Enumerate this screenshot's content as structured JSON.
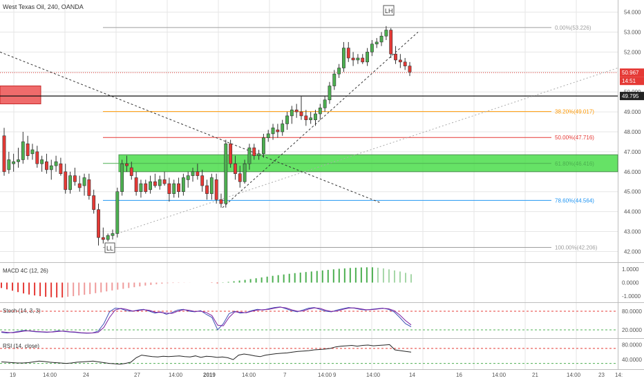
{
  "header": {
    "title": "West Texas Oil, 240, OANDA"
  },
  "colors": {
    "up": "#4caf50",
    "down": "#e53935",
    "wick": "#333333",
    "grid": "#e6e6e6",
    "axis_text": "#555555"
  },
  "chart_data": [
    {
      "type": "candlestick",
      "title": "West Texas Oil, 240, OANDA",
      "ylim": [
        41.6,
        54.4
      ],
      "ticks": [
        "42.000",
        "43.000",
        "44.000",
        "45.000",
        "46.000",
        "47.000",
        "48.000",
        "49.000",
        "50.000",
        "51.000",
        "52.000",
        "53.000",
        "54.000"
      ],
      "price_tags": [
        {
          "label": "50.967",
          "value": 50.967,
          "color": "#e53935"
        },
        {
          "label": "14:51",
          "value": 50.6,
          "color": "#e53935"
        },
        {
          "label": "49.795",
          "value": 49.795,
          "color": "#222222"
        }
      ],
      "fib_levels": [
        {
          "label": "0.00%(53.226)",
          "value": 53.226,
          "color": "#9e9e9e"
        },
        {
          "label": "38.20%(49.017)",
          "value": 49.017,
          "color": "#ff9800"
        },
        {
          "label": "50.00%(47.716)",
          "value": 47.716,
          "color": "#e53935"
        },
        {
          "label": "61.80%(46.416)",
          "value": 46.416,
          "color": "#4caf50"
        },
        {
          "label": "78.60%(44.564)",
          "value": 44.564,
          "color": "#2196f3"
        },
        {
          "label": "100.00%(42.206)",
          "value": 42.206,
          "color": "#9e9e9e"
        }
      ],
      "annotations": [
        "LH",
        "LL"
      ],
      "candles": [
        {
          "o": 47.8,
          "h": 48.2,
          "l": 45.8,
          "c": 46.0
        },
        {
          "o": 46.1,
          "h": 47.0,
          "l": 45.9,
          "c": 46.6
        },
        {
          "o": 46.4,
          "h": 46.9,
          "l": 46.0,
          "c": 46.5
        },
        {
          "o": 46.5,
          "h": 47.2,
          "l": 46.2,
          "c": 46.6
        },
        {
          "o": 46.6,
          "h": 48.0,
          "l": 46.4,
          "c": 47.5
        },
        {
          "o": 47.4,
          "h": 47.8,
          "l": 46.6,
          "c": 46.8
        },
        {
          "o": 46.9,
          "h": 47.4,
          "l": 46.6,
          "c": 47.1
        },
        {
          "o": 47.0,
          "h": 47.3,
          "l": 46.2,
          "c": 46.4
        },
        {
          "o": 46.4,
          "h": 46.8,
          "l": 46.0,
          "c": 46.6
        },
        {
          "o": 46.5,
          "h": 46.9,
          "l": 45.9,
          "c": 46.1
        },
        {
          "o": 46.1,
          "h": 46.6,
          "l": 45.6,
          "c": 46.3
        },
        {
          "o": 46.3,
          "h": 46.8,
          "l": 46.0,
          "c": 46.5
        },
        {
          "o": 46.4,
          "h": 46.7,
          "l": 45.8,
          "c": 45.9
        },
        {
          "o": 46.0,
          "h": 46.4,
          "l": 44.9,
          "c": 45.1
        },
        {
          "o": 45.1,
          "h": 46.0,
          "l": 44.9,
          "c": 45.8
        },
        {
          "o": 45.8,
          "h": 46.2,
          "l": 45.3,
          "c": 45.5
        },
        {
          "o": 45.4,
          "h": 45.8,
          "l": 45.0,
          "c": 45.2
        },
        {
          "o": 45.3,
          "h": 45.9,
          "l": 44.8,
          "c": 45.7
        },
        {
          "o": 45.6,
          "h": 45.9,
          "l": 44.6,
          "c": 44.8
        },
        {
          "o": 44.8,
          "h": 45.1,
          "l": 43.9,
          "c": 44.1
        },
        {
          "o": 44.1,
          "h": 44.4,
          "l": 42.3,
          "c": 42.7
        },
        {
          "o": 42.7,
          "h": 43.2,
          "l": 42.4,
          "c": 42.6
        },
        {
          "o": 42.6,
          "h": 42.9,
          "l": 42.5,
          "c": 42.8
        },
        {
          "o": 42.8,
          "h": 43.1,
          "l": 42.6,
          "c": 42.9
        },
        {
          "o": 42.9,
          "h": 45.2,
          "l": 42.7,
          "c": 45.0
        },
        {
          "o": 45.0,
          "h": 46.6,
          "l": 44.8,
          "c": 46.4
        },
        {
          "o": 46.4,
          "h": 46.8,
          "l": 46.0,
          "c": 46.3
        },
        {
          "o": 46.2,
          "h": 46.5,
          "l": 45.6,
          "c": 45.8
        },
        {
          "o": 45.7,
          "h": 46.0,
          "l": 44.8,
          "c": 45.0
        },
        {
          "o": 45.0,
          "h": 45.6,
          "l": 44.7,
          "c": 45.4
        },
        {
          "o": 45.4,
          "h": 45.6,
          "l": 44.9,
          "c": 45.0
        },
        {
          "o": 45.1,
          "h": 45.8,
          "l": 44.9,
          "c": 45.5
        },
        {
          "o": 45.5,
          "h": 45.9,
          "l": 45.2,
          "c": 45.3
        },
        {
          "o": 45.3,
          "h": 45.8,
          "l": 45.1,
          "c": 45.6
        },
        {
          "o": 45.6,
          "h": 46.0,
          "l": 45.3,
          "c": 45.4
        },
        {
          "o": 45.4,
          "h": 45.7,
          "l": 44.5,
          "c": 44.9
        },
        {
          "o": 44.9,
          "h": 45.6,
          "l": 44.7,
          "c": 45.4
        },
        {
          "o": 45.4,
          "h": 45.7,
          "l": 44.7,
          "c": 45.0
        },
        {
          "o": 45.0,
          "h": 45.9,
          "l": 44.8,
          "c": 45.7
        },
        {
          "o": 45.6,
          "h": 46.0,
          "l": 45.2,
          "c": 45.8
        },
        {
          "o": 45.8,
          "h": 46.2,
          "l": 45.5,
          "c": 46.0
        },
        {
          "o": 46.0,
          "h": 46.4,
          "l": 45.6,
          "c": 45.8
        },
        {
          "o": 45.8,
          "h": 46.1,
          "l": 45.0,
          "c": 45.3
        },
        {
          "o": 45.3,
          "h": 45.6,
          "l": 44.6,
          "c": 44.9
        },
        {
          "o": 44.9,
          "h": 45.9,
          "l": 44.6,
          "c": 45.7
        },
        {
          "o": 45.6,
          "h": 45.9,
          "l": 44.4,
          "c": 44.6
        },
        {
          "o": 44.6,
          "h": 44.9,
          "l": 44.2,
          "c": 44.4
        },
        {
          "o": 44.4,
          "h": 47.6,
          "l": 44.2,
          "c": 47.4
        },
        {
          "o": 47.4,
          "h": 47.6,
          "l": 46.2,
          "c": 46.4
        },
        {
          "o": 46.4,
          "h": 46.8,
          "l": 45.6,
          "c": 45.9
        },
        {
          "o": 45.9,
          "h": 46.3,
          "l": 45.2,
          "c": 45.5
        },
        {
          "o": 45.5,
          "h": 46.6,
          "l": 45.4,
          "c": 46.4
        },
        {
          "o": 46.4,
          "h": 47.4,
          "l": 46.1,
          "c": 47.2
        },
        {
          "o": 47.2,
          "h": 47.4,
          "l": 46.6,
          "c": 46.8
        },
        {
          "o": 46.8,
          "h": 47.1,
          "l": 46.6,
          "c": 46.9
        },
        {
          "o": 46.9,
          "h": 47.9,
          "l": 46.7,
          "c": 47.7
        },
        {
          "o": 47.7,
          "h": 48.1,
          "l": 47.5,
          "c": 47.9
        },
        {
          "o": 47.9,
          "h": 48.4,
          "l": 47.6,
          "c": 48.2
        },
        {
          "o": 48.1,
          "h": 48.4,
          "l": 47.7,
          "c": 48.0
        },
        {
          "o": 48.0,
          "h": 48.6,
          "l": 47.8,
          "c": 48.4
        },
        {
          "o": 48.4,
          "h": 49.0,
          "l": 48.1,
          "c": 48.8
        },
        {
          "o": 48.8,
          "h": 49.3,
          "l": 48.4,
          "c": 49.1
        },
        {
          "o": 49.1,
          "h": 49.4,
          "l": 48.7,
          "c": 49.0
        },
        {
          "o": 49.0,
          "h": 49.8,
          "l": 48.6,
          "c": 48.8
        },
        {
          "o": 48.8,
          "h": 49.1,
          "l": 48.3,
          "c": 48.6
        },
        {
          "o": 48.6,
          "h": 49.0,
          "l": 48.4,
          "c": 48.7
        },
        {
          "o": 48.6,
          "h": 49.1,
          "l": 48.3,
          "c": 48.9
        },
        {
          "o": 48.9,
          "h": 49.4,
          "l": 48.6,
          "c": 49.2
        },
        {
          "o": 49.2,
          "h": 49.8,
          "l": 49.0,
          "c": 49.6
        },
        {
          "o": 49.6,
          "h": 50.5,
          "l": 49.4,
          "c": 50.3
        },
        {
          "o": 50.3,
          "h": 51.1,
          "l": 50.1,
          "c": 50.9
        },
        {
          "o": 50.9,
          "h": 51.4,
          "l": 50.7,
          "c": 51.2
        },
        {
          "o": 51.2,
          "h": 52.5,
          "l": 51.0,
          "c": 52.2
        },
        {
          "o": 52.2,
          "h": 52.5,
          "l": 51.5,
          "c": 51.7
        },
        {
          "o": 51.7,
          "h": 52.0,
          "l": 51.3,
          "c": 51.6
        },
        {
          "o": 51.6,
          "h": 51.9,
          "l": 51.4,
          "c": 51.7
        },
        {
          "o": 51.7,
          "h": 51.9,
          "l": 51.4,
          "c": 51.5
        },
        {
          "o": 51.5,
          "h": 52.2,
          "l": 51.3,
          "c": 52.0
        },
        {
          "o": 52.0,
          "h": 52.6,
          "l": 51.8,
          "c": 52.4
        },
        {
          "o": 52.4,
          "h": 52.7,
          "l": 52.2,
          "c": 52.5
        },
        {
          "o": 52.5,
          "h": 53.0,
          "l": 52.3,
          "c": 52.8
        },
        {
          "o": 52.8,
          "h": 53.3,
          "l": 52.6,
          "c": 53.1
        },
        {
          "o": 53.1,
          "h": 53.2,
          "l": 51.7,
          "c": 51.9
        },
        {
          "o": 51.9,
          "h": 52.3,
          "l": 51.4,
          "c": 51.6
        },
        {
          "o": 51.6,
          "h": 51.9,
          "l": 51.2,
          "c": 51.5
        },
        {
          "o": 51.5,
          "h": 51.7,
          "l": 51.1,
          "c": 51.3
        },
        {
          "o": 51.3,
          "h": 51.5,
          "l": 50.8,
          "c": 51.0
        }
      ],
      "x_labels": [
        "19",
        "14:00",
        "24",
        "27",
        "14:00",
        "2019",
        "14:00",
        "7",
        "14:00",
        "9",
        "14:00",
        "14",
        "16",
        "14:00",
        "21",
        "14:00",
        "23",
        "14:"
      ]
    },
    {
      "type": "histogram",
      "title": "MACD 4C (12, 26)",
      "ticks": [
        "1.0000",
        "0.0000",
        "-1.0000"
      ],
      "ylim": [
        -1.3,
        1.3
      ],
      "values": [
        -0.4,
        -0.5,
        -0.6,
        -0.7,
        -0.8,
        -0.88,
        -0.95,
        -1.0,
        -1.05,
        -1.08,
        -1.1,
        -1.1,
        -1.05,
        -1.0,
        -0.95,
        -0.9,
        -0.85,
        -0.78,
        -0.72,
        -0.65,
        -0.58,
        -0.52,
        -0.46,
        -0.4,
        -0.34,
        -0.28,
        -0.22,
        -0.17,
        -0.12,
        -0.08,
        -0.05,
        -0.03,
        -0.02,
        -0.01,
        -0.005,
        0.0,
        0.0,
        0.0,
        -0.02,
        -0.05,
        0.02,
        0.05,
        0.1,
        0.15,
        0.2,
        0.26,
        0.32,
        0.38,
        0.44,
        0.5,
        0.55,
        0.6,
        0.65,
        0.7,
        0.74,
        0.78,
        0.82,
        0.86,
        0.9,
        0.94,
        0.98,
        1.02,
        1.05,
        1.08,
        1.1,
        1.12,
        1.13,
        1.13,
        1.1,
        1.05,
        0.98,
        0.9,
        0.82,
        0.72,
        0.62
      ],
      "colors": [
        "#e53935",
        "#ef9a9a",
        "#4caf50",
        "#a5d6a7"
      ]
    },
    {
      "type": "line",
      "title": "Stoch (14, 3, 3)",
      "ticks": [
        "80.0000",
        "20.0000"
      ],
      "ylim": [
        0,
        100
      ],
      "levels": [
        80,
        20
      ],
      "series": [
        {
          "color": "#3f51b5",
          "values": [
            12,
            10,
            12,
            15,
            18,
            16,
            14,
            13,
            12,
            14,
            17,
            15,
            13,
            12,
            10,
            9,
            10,
            16,
            40,
            78,
            90,
            88,
            82,
            80,
            84,
            86,
            80,
            74,
            78,
            70,
            76,
            84,
            86,
            80,
            78,
            82,
            70,
            60,
            20,
            40,
            72,
            80,
            74,
            76,
            82,
            86,
            84,
            88,
            92,
            94,
            88,
            82,
            78,
            84,
            90,
            92,
            86,
            80,
            78,
            84,
            88,
            92,
            90,
            86,
            84,
            86,
            88,
            90,
            86,
            78,
            60,
            40,
            30
          ]
        },
        {
          "color": "#7b1fa2",
          "values": [
            14,
            12,
            11,
            13,
            16,
            17,
            15,
            14,
            13,
            13,
            15,
            16,
            14,
            13,
            11,
            10,
            10,
            12,
            28,
            60,
            84,
            89,
            86,
            81,
            82,
            85,
            83,
            77,
            76,
            74,
            73,
            80,
            85,
            83,
            79,
            80,
            76,
            66,
            35,
            33,
            60,
            78,
            77,
            75,
            80,
            84,
            85,
            86,
            90,
            93,
            91,
            85,
            80,
            81,
            87,
            91,
            89,
            83,
            79,
            81,
            86,
            90,
            91,
            88,
            85,
            85,
            87,
            89,
            88,
            82,
            68,
            50,
            36
          ]
        }
      ]
    },
    {
      "type": "line",
      "title": "RSI (14, close)",
      "ticks": [
        "80.0000",
        "40.0000"
      ],
      "ylim": [
        20,
        90
      ],
      "levels": [
        70,
        30
      ],
      "series": [
        {
          "color": "#222222",
          "values": [
            34,
            33,
            32,
            31,
            31,
            32,
            34,
            36,
            35,
            33,
            32,
            31,
            30,
            31,
            33,
            34,
            35,
            36,
            34,
            32,
            30,
            29,
            28,
            30,
            33,
            45,
            52,
            50,
            48,
            47,
            49,
            48,
            49,
            50,
            48,
            47,
            50,
            46,
            49,
            48,
            46,
            47,
            45,
            40,
            52,
            55,
            53,
            50,
            48,
            52,
            54,
            56,
            57,
            58,
            60,
            62,
            63,
            64,
            66,
            67,
            68,
            70,
            74,
            76,
            77,
            78,
            76,
            78,
            79,
            77,
            78,
            79,
            80,
            66,
            64,
            62,
            60
          ]
        }
      ]
    }
  ]
}
